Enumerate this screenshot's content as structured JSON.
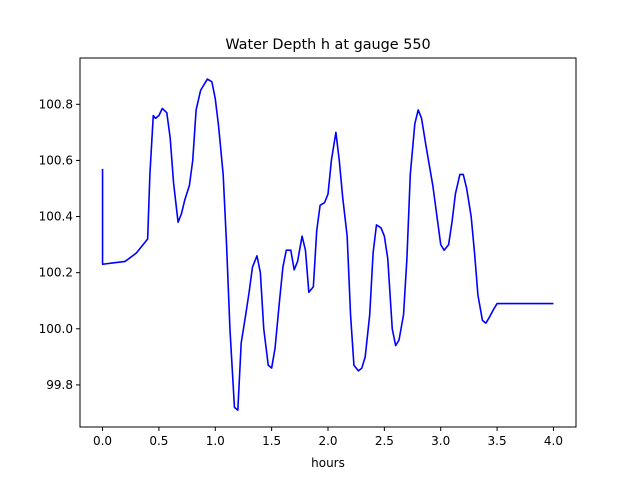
{
  "chart_data": {
    "type": "line",
    "title": "Water Depth h at gauge 550",
    "xlabel": "hours",
    "ylabel": "",
    "xlim": [
      -0.2,
      4.2
    ],
    "ylim": [
      99.65,
      100.965
    ],
    "grid": false,
    "xticks": [
      0.0,
      0.5,
      1.0,
      1.5,
      2.0,
      2.5,
      3.0,
      3.5,
      4.0
    ],
    "xtick_labels": [
      "0.0",
      "0.5",
      "1.0",
      "1.5",
      "2.0",
      "2.5",
      "3.0",
      "3.5",
      "4.0"
    ],
    "yticks": [
      99.8,
      100.0,
      100.2,
      100.4,
      100.6,
      100.8
    ],
    "ytick_labels": [
      "99.8",
      "100.0",
      "100.2",
      "100.4",
      "100.6",
      "100.8"
    ],
    "series": [
      {
        "color": "#0000ff",
        "x": [
          0.0,
          0.0,
          0.001,
          0.1,
          0.2,
          0.3,
          0.4,
          0.42,
          0.45,
          0.47,
          0.5,
          0.53,
          0.57,
          0.6,
          0.63,
          0.67,
          0.7,
          0.73,
          0.77,
          0.8,
          0.83,
          0.87,
          0.9,
          0.93,
          0.97,
          1.0,
          1.03,
          1.07,
          1.1,
          1.13,
          1.17,
          1.2,
          1.23,
          1.27,
          1.3,
          1.33,
          1.37,
          1.4,
          1.43,
          1.47,
          1.5,
          1.53,
          1.57,
          1.6,
          1.63,
          1.67,
          1.7,
          1.73,
          1.77,
          1.8,
          1.83,
          1.87,
          1.9,
          1.93,
          1.97,
          2.0,
          2.03,
          2.07,
          2.1,
          2.13,
          2.17,
          2.2,
          2.23,
          2.27,
          2.3,
          2.33,
          2.37,
          2.4,
          2.43,
          2.47,
          2.5,
          2.53,
          2.57,
          2.6,
          2.63,
          2.67,
          2.7,
          2.73,
          2.77,
          2.8,
          2.83,
          2.87,
          2.9,
          2.93,
          2.97,
          3.0,
          3.03,
          3.07,
          3.1,
          3.13,
          3.17,
          3.2,
          3.23,
          3.27,
          3.3,
          3.33,
          3.37,
          3.4,
          3.43,
          3.47,
          3.5,
          3.53,
          3.57,
          3.6,
          3.63,
          3.67,
          3.7,
          3.73,
          3.77,
          3.8,
          3.83,
          3.87,
          3.9,
          3.93,
          3.97,
          4.0
        ],
        "y": [
          100.57,
          100.23,
          100.23,
          100.235,
          100.24,
          100.27,
          100.32,
          100.55,
          100.76,
          100.75,
          100.76,
          100.785,
          100.77,
          100.68,
          100.52,
          100.38,
          100.41,
          100.46,
          100.51,
          100.6,
          100.78,
          100.85,
          100.87,
          100.89,
          100.88,
          100.82,
          100.72,
          100.55,
          100.3,
          100.0,
          99.72,
          99.71,
          99.95,
          100.05,
          100.13,
          100.22,
          100.26,
          100.2,
          100.0,
          99.87,
          99.86,
          99.93,
          100.1,
          100.22,
          100.28,
          100.28,
          100.21,
          100.24,
          100.33,
          100.28,
          100.13,
          100.15,
          100.35,
          100.44,
          100.45,
          100.48,
          100.6,
          100.7,
          100.6,
          100.47,
          100.33,
          100.05,
          99.87,
          99.85,
          99.86,
          99.9,
          100.05,
          100.27,
          100.37,
          100.36,
          100.33,
          100.25,
          100.0,
          99.94,
          99.96,
          100.05,
          100.25,
          100.55,
          100.73,
          100.78,
          100.75,
          100.65,
          100.58,
          100.51,
          100.39,
          100.3,
          100.28,
          100.3,
          100.38,
          100.48,
          100.55,
          100.55,
          100.5,
          100.4,
          100.27,
          100.12,
          100.03,
          100.02,
          100.04,
          100.07,
          100.09,
          100.09,
          100.09,
          100.09,
          100.09,
          100.09,
          100.09,
          100.09,
          100.09,
          100.09,
          100.09,
          100.09,
          100.09,
          100.09,
          100.09,
          100.09
        ]
      }
    ]
  }
}
